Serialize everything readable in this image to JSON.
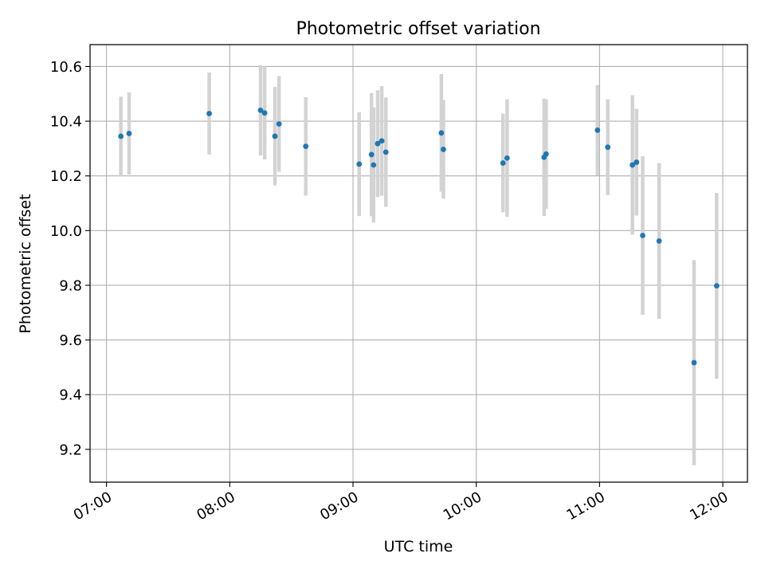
{
  "chart_data": {
    "type": "scatter",
    "title": "Photometric offset variation",
    "xlabel": "UTC time",
    "ylabel": "Photometric offset",
    "x_tick_labels": [
      "07:00",
      "08:00",
      "09:00",
      "10:00",
      "11:00",
      "12:00"
    ],
    "y_tick_labels": [
      "9.2",
      "9.4",
      "9.6",
      "9.8",
      "10.0",
      "10.2",
      "10.4",
      "10.6"
    ],
    "xlim": [
      "06:52",
      "12:12"
    ],
    "ylim": [
      9.08,
      10.68
    ],
    "grid": true,
    "marker_color": "#1f77b4",
    "errorbar_color": "#d3d3d3",
    "series": [
      {
        "points": [
          {
            "x": "07:07",
            "y": 10.345,
            "yerr": 0.145
          },
          {
            "x": "07:11",
            "y": 10.355,
            "yerr": 0.15
          },
          {
            "x": "07:50",
            "y": 10.428,
            "yerr": 0.15
          },
          {
            "x": "08:15",
            "y": 10.44,
            "yerr": 0.165
          },
          {
            "x": "08:17",
            "y": 10.43,
            "yerr": 0.17
          },
          {
            "x": "08:22",
            "y": 10.345,
            "yerr": 0.18
          },
          {
            "x": "08:24",
            "y": 10.39,
            "yerr": 0.175
          },
          {
            "x": "08:37",
            "y": 10.308,
            "yerr": 0.18
          },
          {
            "x": "09:03",
            "y": 10.243,
            "yerr": 0.19
          },
          {
            "x": "09:09",
            "y": 10.278,
            "yerr": 0.225
          },
          {
            "x": "09:10",
            "y": 10.24,
            "yerr": 0.21
          },
          {
            "x": "09:12",
            "y": 10.318,
            "yerr": 0.195
          },
          {
            "x": "09:14",
            "y": 10.328,
            "yerr": 0.2
          },
          {
            "x": "09:16",
            "y": 10.287,
            "yerr": 0.2
          },
          {
            "x": "09:43",
            "y": 10.357,
            "yerr": 0.215
          },
          {
            "x": "09:44",
            "y": 10.297,
            "yerr": 0.18
          },
          {
            "x": "10:13",
            "y": 10.247,
            "yerr": 0.18
          },
          {
            "x": "10:15",
            "y": 10.265,
            "yerr": 0.215
          },
          {
            "x": "10:33",
            "y": 10.268,
            "yerr": 0.215
          },
          {
            "x": "10:34",
            "y": 10.28,
            "yerr": 0.2
          },
          {
            "x": "10:59",
            "y": 10.367,
            "yerr": 0.165
          },
          {
            "x": "11:04",
            "y": 10.305,
            "yerr": 0.175
          },
          {
            "x": "11:16",
            "y": 10.24,
            "yerr": 0.255
          },
          {
            "x": "11:18",
            "y": 10.25,
            "yerr": 0.195
          },
          {
            "x": "11:21",
            "y": 9.982,
            "yerr": 0.29
          },
          {
            "x": "11:29",
            "y": 9.962,
            "yerr": 0.285
          },
          {
            "x": "11:46",
            "y": 9.517,
            "yerr": 0.375
          },
          {
            "x": "11:57",
            "y": 9.798,
            "yerr": 0.34
          }
        ]
      }
    ]
  }
}
